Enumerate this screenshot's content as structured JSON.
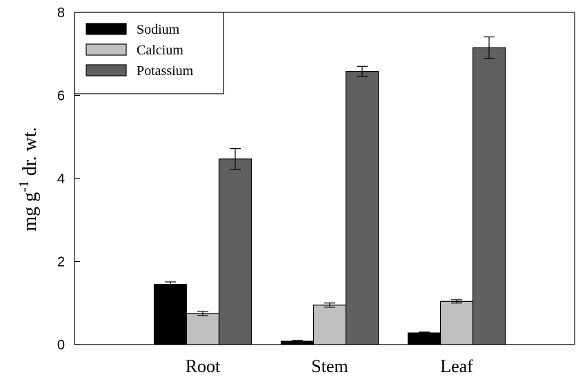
{
  "chart_data": {
    "type": "bar",
    "title": "",
    "xlabel": "",
    "ylabel": {
      "main": "mg g",
      "superscript": "-1",
      "suffix": " dr. wt."
    },
    "ylim": [
      0,
      8
    ],
    "yticks": [
      "0",
      "2",
      "4",
      "6",
      "8"
    ],
    "grid": false,
    "legend_position": "top-left",
    "categories": [
      "Root",
      "Stem",
      "Leaf"
    ],
    "series": [
      {
        "name": "Sodium",
        "color": "#000000",
        "values": [
          1.45,
          0.08,
          0.28
        ],
        "errors": [
          0.06,
          0.02,
          0.02
        ]
      },
      {
        "name": "Calcium",
        "color": "#c0c0c0",
        "values": [
          0.75,
          0.95,
          1.04
        ],
        "errors": [
          0.05,
          0.05,
          0.04
        ]
      },
      {
        "name": "Potassium",
        "color": "#606060",
        "values": [
          4.47,
          6.58,
          7.15
        ],
        "errors": [
          0.25,
          0.12,
          0.26
        ]
      }
    ]
  }
}
